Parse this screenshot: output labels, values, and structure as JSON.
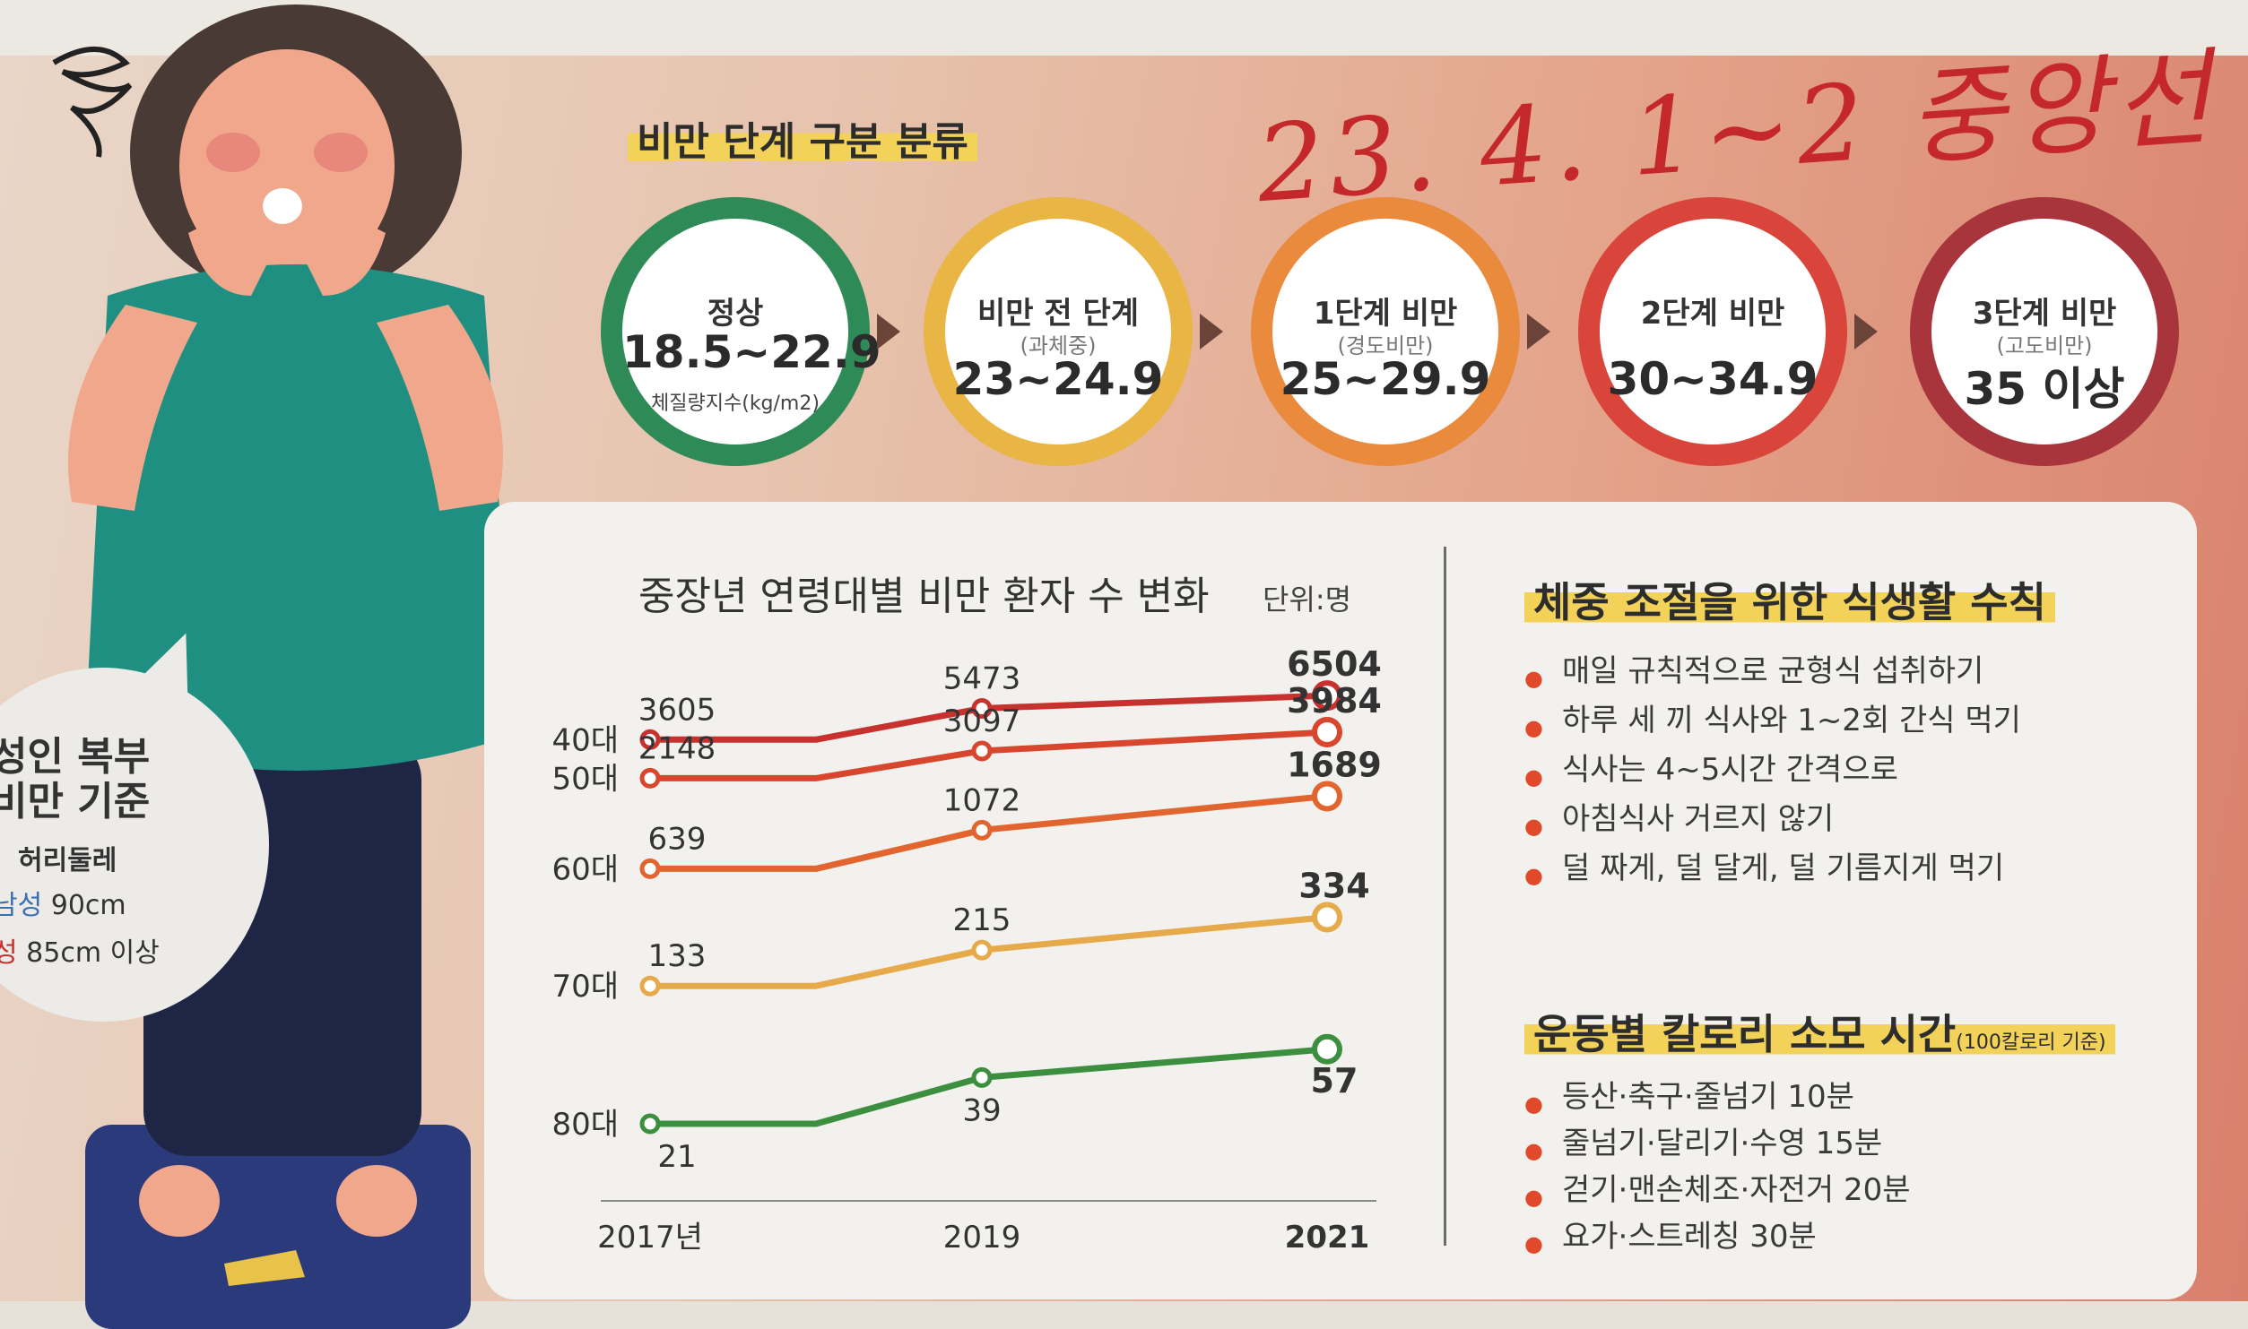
{
  "handwritten_note": "23. 4. 1~2 중앙선",
  "classification": {
    "title": "비만 단계 구분 분류",
    "unit": "체질량지수(kg/m2)",
    "stages": [
      {
        "name": "정상",
        "sub": "",
        "range": "18.5~22.9",
        "color": "#2e8b57"
      },
      {
        "name": "비만 전 단계",
        "sub": "(과체중)",
        "range": "23~24.9",
        "color": "#e9b544"
      },
      {
        "name": "1단계 비만",
        "sub": "(경도비만)",
        "range": "25~29.9",
        "color": "#e98a3c"
      },
      {
        "name": "2단계 비만",
        "sub": "",
        "range": "30~34.9",
        "color": "#d9453a"
      },
      {
        "name": "3단계 비만",
        "sub": "(고도비만)",
        "range": "35 이상",
        "color": "#a8353c"
      }
    ]
  },
  "bubble": {
    "title_line1": "성인 복부",
    "title_line2": "비만 기준",
    "label": "허리둘레",
    "male_gender": "남성",
    "male": "90cm",
    "female_gender": "성",
    "female": "85cm 이상"
  },
  "chart_data": {
    "type": "line",
    "title": "중장년 연령대별 비만 환자 수 변화",
    "unit": "단위:명",
    "x": [
      "2017년",
      "2019",
      "2021"
    ],
    "series": [
      {
        "name": "40대",
        "values": [
          3605,
          5473,
          6504
        ],
        "color": "#c8322e"
      },
      {
        "name": "50대",
        "values": [
          2148,
          3097,
          3984
        ],
        "color": "#d9462e"
      },
      {
        "name": "60대",
        "values": [
          639,
          1072,
          1689
        ],
        "color": "#e2642e"
      },
      {
        "name": "70대",
        "values": [
          133,
          215,
          334
        ],
        "color": "#e6aa4a"
      },
      {
        "name": "80대",
        "values": [
          21,
          39,
          57
        ],
        "color": "#3b8f3e"
      }
    ]
  },
  "diet_rules": {
    "title": "체중 조절을 위한 식생활 수칙",
    "items": [
      "매일 규칙적으로 균형식 섭취하기",
      "하루 세 끼 식사와 1~2회 간식 먹기",
      "식사는 4~5시간 간격으로",
      "아침식사 거르지 않기",
      "덜 짜게, 덜 달게, 덜 기름지게 먹기"
    ]
  },
  "exercise": {
    "title": "운동별 칼로리 소모 시간",
    "note": "(100칼로리 기준)",
    "items": [
      "등산·축구·줄넘기 10분",
      "줄넘기·달리기·수영 15분",
      "걷기·맨손체조·자전거 20분",
      "요가·스트레칭 30분"
    ]
  }
}
